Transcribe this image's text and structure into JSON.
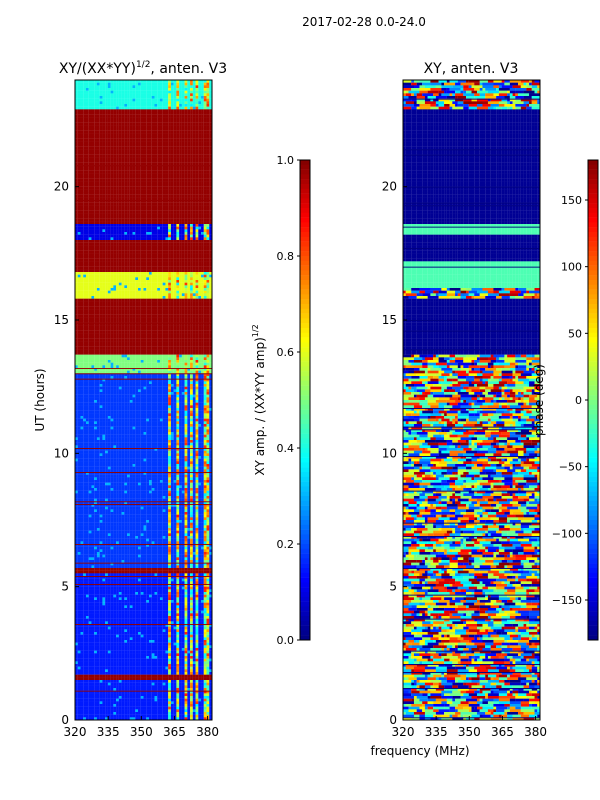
{
  "figure": {
    "suptitle": "2017-02-28 0.0-24.0",
    "shared_xlabel": "frequency (MHz)"
  },
  "chart_data": [
    {
      "type": "heatmap",
      "id": "amp",
      "title": "XY/(XX*YY)",
      "title_sup": "1/2",
      "title_suffix": ", anten. V3",
      "ylabel": "UT (hours)",
      "xlim": [
        320,
        382
      ],
      "ylim": [
        0,
        24
      ],
      "xticks": [
        320,
        335,
        350,
        365,
        380
      ],
      "yticks": [
        0,
        5,
        10,
        15,
        20
      ],
      "colormap": "jet",
      "colorbar": {
        "label": "XY amp. / (XX*YY amp)",
        "label_sup": "1/2",
        "range": [
          0.0,
          1.0
        ],
        "ticks": [
          "0.0",
          "0.2",
          "0.4",
          "0.6",
          "0.8",
          "1.0"
        ]
      },
      "bands": [
        {
          "from": 0.0,
          "to": 1.5,
          "level": 0.15
        },
        {
          "from": 1.5,
          "to": 1.65,
          "level": 0.98
        },
        {
          "from": 1.65,
          "to": 5.5,
          "level": 0.15
        },
        {
          "from": 5.5,
          "to": 5.7,
          "level": 0.98
        },
        {
          "from": 5.7,
          "to": 13.0,
          "level": 0.18
        },
        {
          "from": 13.0,
          "to": 13.7,
          "level": 0.5
        },
        {
          "from": 13.7,
          "to": 15.8,
          "level": 0.98
        },
        {
          "from": 15.8,
          "to": 16.8,
          "level": 0.6
        },
        {
          "from": 16.8,
          "to": 18.0,
          "level": 0.98
        },
        {
          "from": 18.0,
          "to": 18.6,
          "level": 0.1
        },
        {
          "from": 18.6,
          "to": 22.9,
          "level": 0.98
        },
        {
          "from": 22.9,
          "to": 24.0,
          "level": 0.4
        }
      ],
      "rfi_columns": [
        362,
        366,
        369,
        372,
        375,
        378,
        380
      ]
    },
    {
      "type": "heatmap",
      "id": "phase",
      "title": "XY, anten. V3",
      "ylabel": "",
      "xlim": [
        320,
        382
      ],
      "ylim": [
        0,
        24
      ],
      "xticks": [
        320,
        335,
        350,
        365,
        380
      ],
      "yticks": [
        0,
        5,
        10,
        15,
        20
      ],
      "colormap": "jet",
      "colorbar": {
        "label": "phase (deg)",
        "range": [
          -180,
          180
        ],
        "ticks": [
          "−150",
          "−100",
          "−50",
          "0",
          "50",
          "100",
          "150"
        ],
        "tick_values": [
          -150,
          -100,
          -50,
          0,
          50,
          100,
          150
        ]
      },
      "bands": [
        {
          "from": 0.0,
          "to": 13.7,
          "level": 0.5,
          "noisy": true
        },
        {
          "from": 13.7,
          "to": 15.8,
          "level": 0.02
        },
        {
          "from": 15.8,
          "to": 16.2,
          "level": 0.5,
          "noisy": true
        },
        {
          "from": 16.2,
          "to": 17.2,
          "level": 0.45
        },
        {
          "from": 17.2,
          "to": 18.2,
          "level": 0.02
        },
        {
          "from": 18.2,
          "to": 18.6,
          "level": 0.45
        },
        {
          "from": 18.6,
          "to": 22.9,
          "level": 0.02
        },
        {
          "from": 22.9,
          "to": 24.0,
          "level": 0.5,
          "noisy": true
        }
      ]
    }
  ]
}
